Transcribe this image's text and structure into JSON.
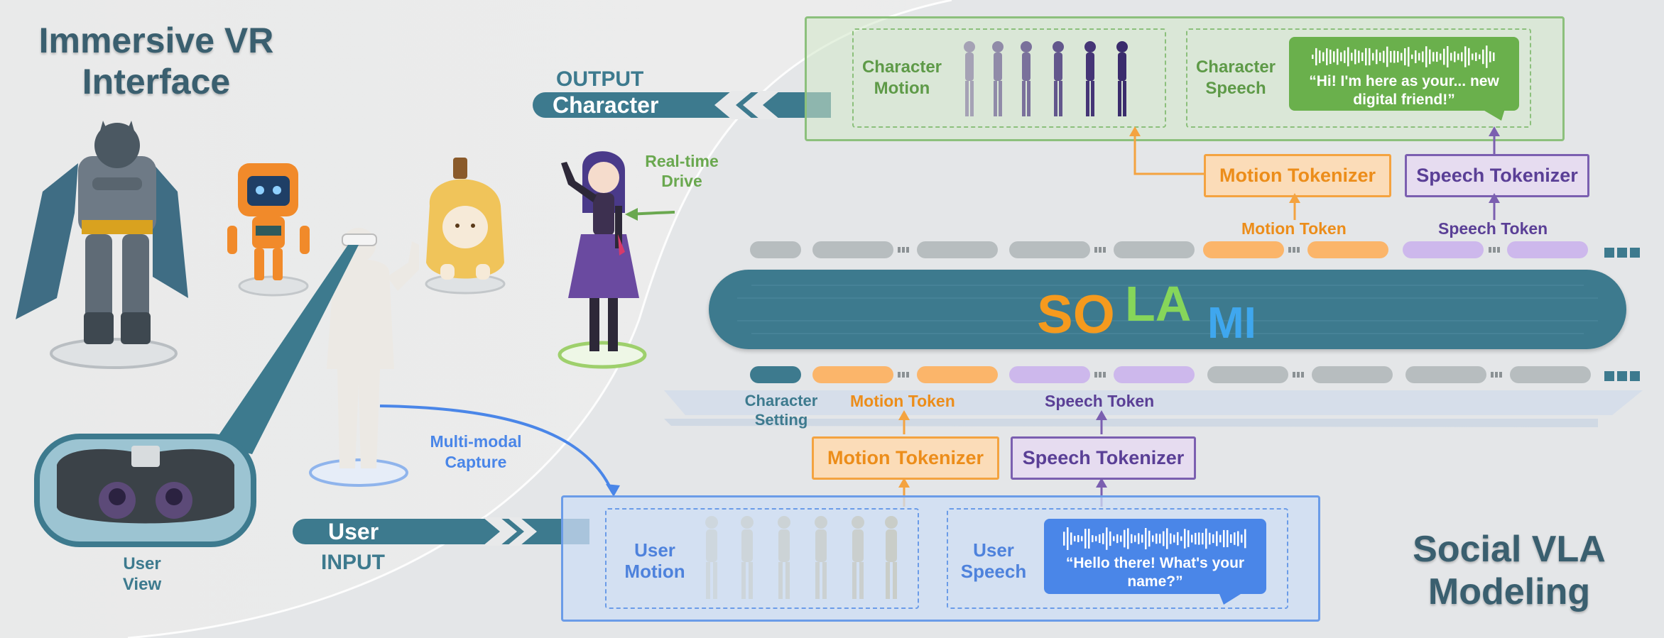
{
  "left": {
    "title_line1": "Immersive VR",
    "title_line2": "Interface",
    "user_view_line1": "User",
    "user_view_line2": "View",
    "realtime_line1": "Real-time",
    "realtime_line2": "Drive",
    "multimodal_line1": "Multi-modal",
    "multimodal_line2": "Capture"
  },
  "output": {
    "tag": "OUTPUT",
    "banner": "Character",
    "motion_label_line1": "Character",
    "motion_label_line2": "Motion",
    "speech_label_line1": "Character",
    "speech_label_line2": "Speech",
    "speech_bubble_line1": "“Hi! I'm here as your... new",
    "speech_bubble_line2": "digital friend!”"
  },
  "input": {
    "tag": "INPUT",
    "banner": "User",
    "motion_label_line1": "User",
    "motion_label_line2": "Motion",
    "speech_label_line1": "User",
    "speech_label_line2": "Speech",
    "speech_bubble_line1": "“Hello there! What's your",
    "speech_bubble_line2": "name?”"
  },
  "model": {
    "logo_so": "SO",
    "logo_la": "LA",
    "logo_mi": "MI",
    "top_motion_tokenizer": "Motion Tokenizer",
    "top_speech_tokenizer": "Speech Tokenizer",
    "top_motion_token": "Motion Token",
    "top_speech_token": "Speech Token",
    "bottom_motion_tokenizer": "Motion Tokenizer",
    "bottom_speech_tokenizer": "Speech Tokenizer",
    "bottom_motion_token": "Motion Token",
    "bottom_speech_token": "Speech Token",
    "character_setting_line1": "Character",
    "character_setting_line2": "Setting"
  },
  "right": {
    "title_line1": "Social VLA",
    "title_line2": "Modeling"
  },
  "colors": {
    "teal": "#3d7a8e",
    "green": "#6ab04c",
    "blue": "#4a86e8",
    "orange": "#f4a340",
    "purple": "#7b5fb0"
  }
}
